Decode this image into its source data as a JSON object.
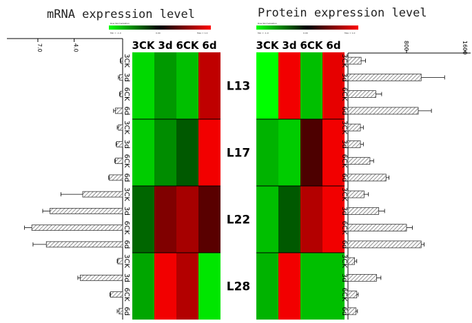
{
  "chart_data": [
    {
      "type": "heatmap",
      "title": "mRNA expression level",
      "columns": [
        "3CK",
        "3d",
        "6CK",
        "6d"
      ],
      "row_groups": [
        "L13",
        "L17",
        "L22",
        "L28"
      ],
      "colors": {
        "low": "#00ff00",
        "mid": "#000000",
        "high": "#ff0000"
      },
      "values": [
        [
          0.85,
          0.6,
          0.75,
          -0.75
        ],
        [
          0.8,
          0.55,
          0.35,
          -0.95
        ],
        [
          0.4,
          -0.5,
          -0.65,
          -0.35
        ],
        [
          0.65,
          -0.95,
          -0.7,
          0.9
        ]
      ]
    },
    {
      "type": "heatmap",
      "title": "Protein expression level",
      "columns": [
        "3CK",
        "3d",
        "6CK",
        "6d"
      ],
      "row_groups": [
        "L13",
        "L17",
        "L22",
        "L28"
      ],
      "colors": {
        "low": "#00ff00",
        "mid": "#000000",
        "high": "#ff0000"
      },
      "values": [
        [
          1.0,
          -0.95,
          0.75,
          -0.9
        ],
        [
          0.7,
          0.8,
          -0.3,
          -0.95
        ],
        [
          0.75,
          0.35,
          -0.7,
          -0.95
        ],
        [
          0.7,
          -0.95,
          0.75,
          0.75
        ]
      ]
    },
    {
      "type": "bar",
      "orientation": "horizontal",
      "direction": "right-to-left",
      "axis_ticks": [
        "7.0",
        "4.0"
      ],
      "xlim": [
        0,
        9.5
      ],
      "categories": [
        "3CK",
        "3d",
        "6CK",
        "6d",
        "3CK",
        "3d",
        "6CK",
        "6d",
        "3CK",
        "3d",
        "6CK",
        "6d",
        "3CK",
        "3d",
        "6CK",
        "6d"
      ],
      "values": [
        0.15,
        0.25,
        0.2,
        0.6,
        0.35,
        0.5,
        0.6,
        1.1,
        3.3,
        6.0,
        7.5,
        6.3,
        0.4,
        3.5,
        1.0,
        0.3
      ],
      "errors": [
        0.05,
        0.1,
        0.05,
        0.15,
        0.1,
        0.05,
        0.05,
        0.05,
        1.8,
        0.6,
        0.6,
        1.1,
        0.05,
        0.2,
        0.05,
        0.15
      ]
    },
    {
      "type": "bar",
      "orientation": "horizontal",
      "axis_ticks": [
        "800",
        "1600"
      ],
      "xlim": [
        0,
        1600
      ],
      "categories": [
        "3CK",
        "3d",
        "6CK",
        "6d",
        "3CK",
        "3d",
        "6CK",
        "6d",
        "3CK",
        "3d",
        "6CK",
        "6d",
        "3CK",
        "3d",
        "6CK",
        "6d"
      ],
      "values": [
        180,
        1000,
        380,
        960,
        170,
        170,
        300,
        520,
        220,
        420,
        800,
        1000,
        90,
        390,
        120,
        110
      ],
      "errors": [
        60,
        320,
        80,
        180,
        40,
        40,
        50,
        40,
        60,
        80,
        80,
        40,
        30,
        60,
        20,
        20
      ]
    }
  ]
}
